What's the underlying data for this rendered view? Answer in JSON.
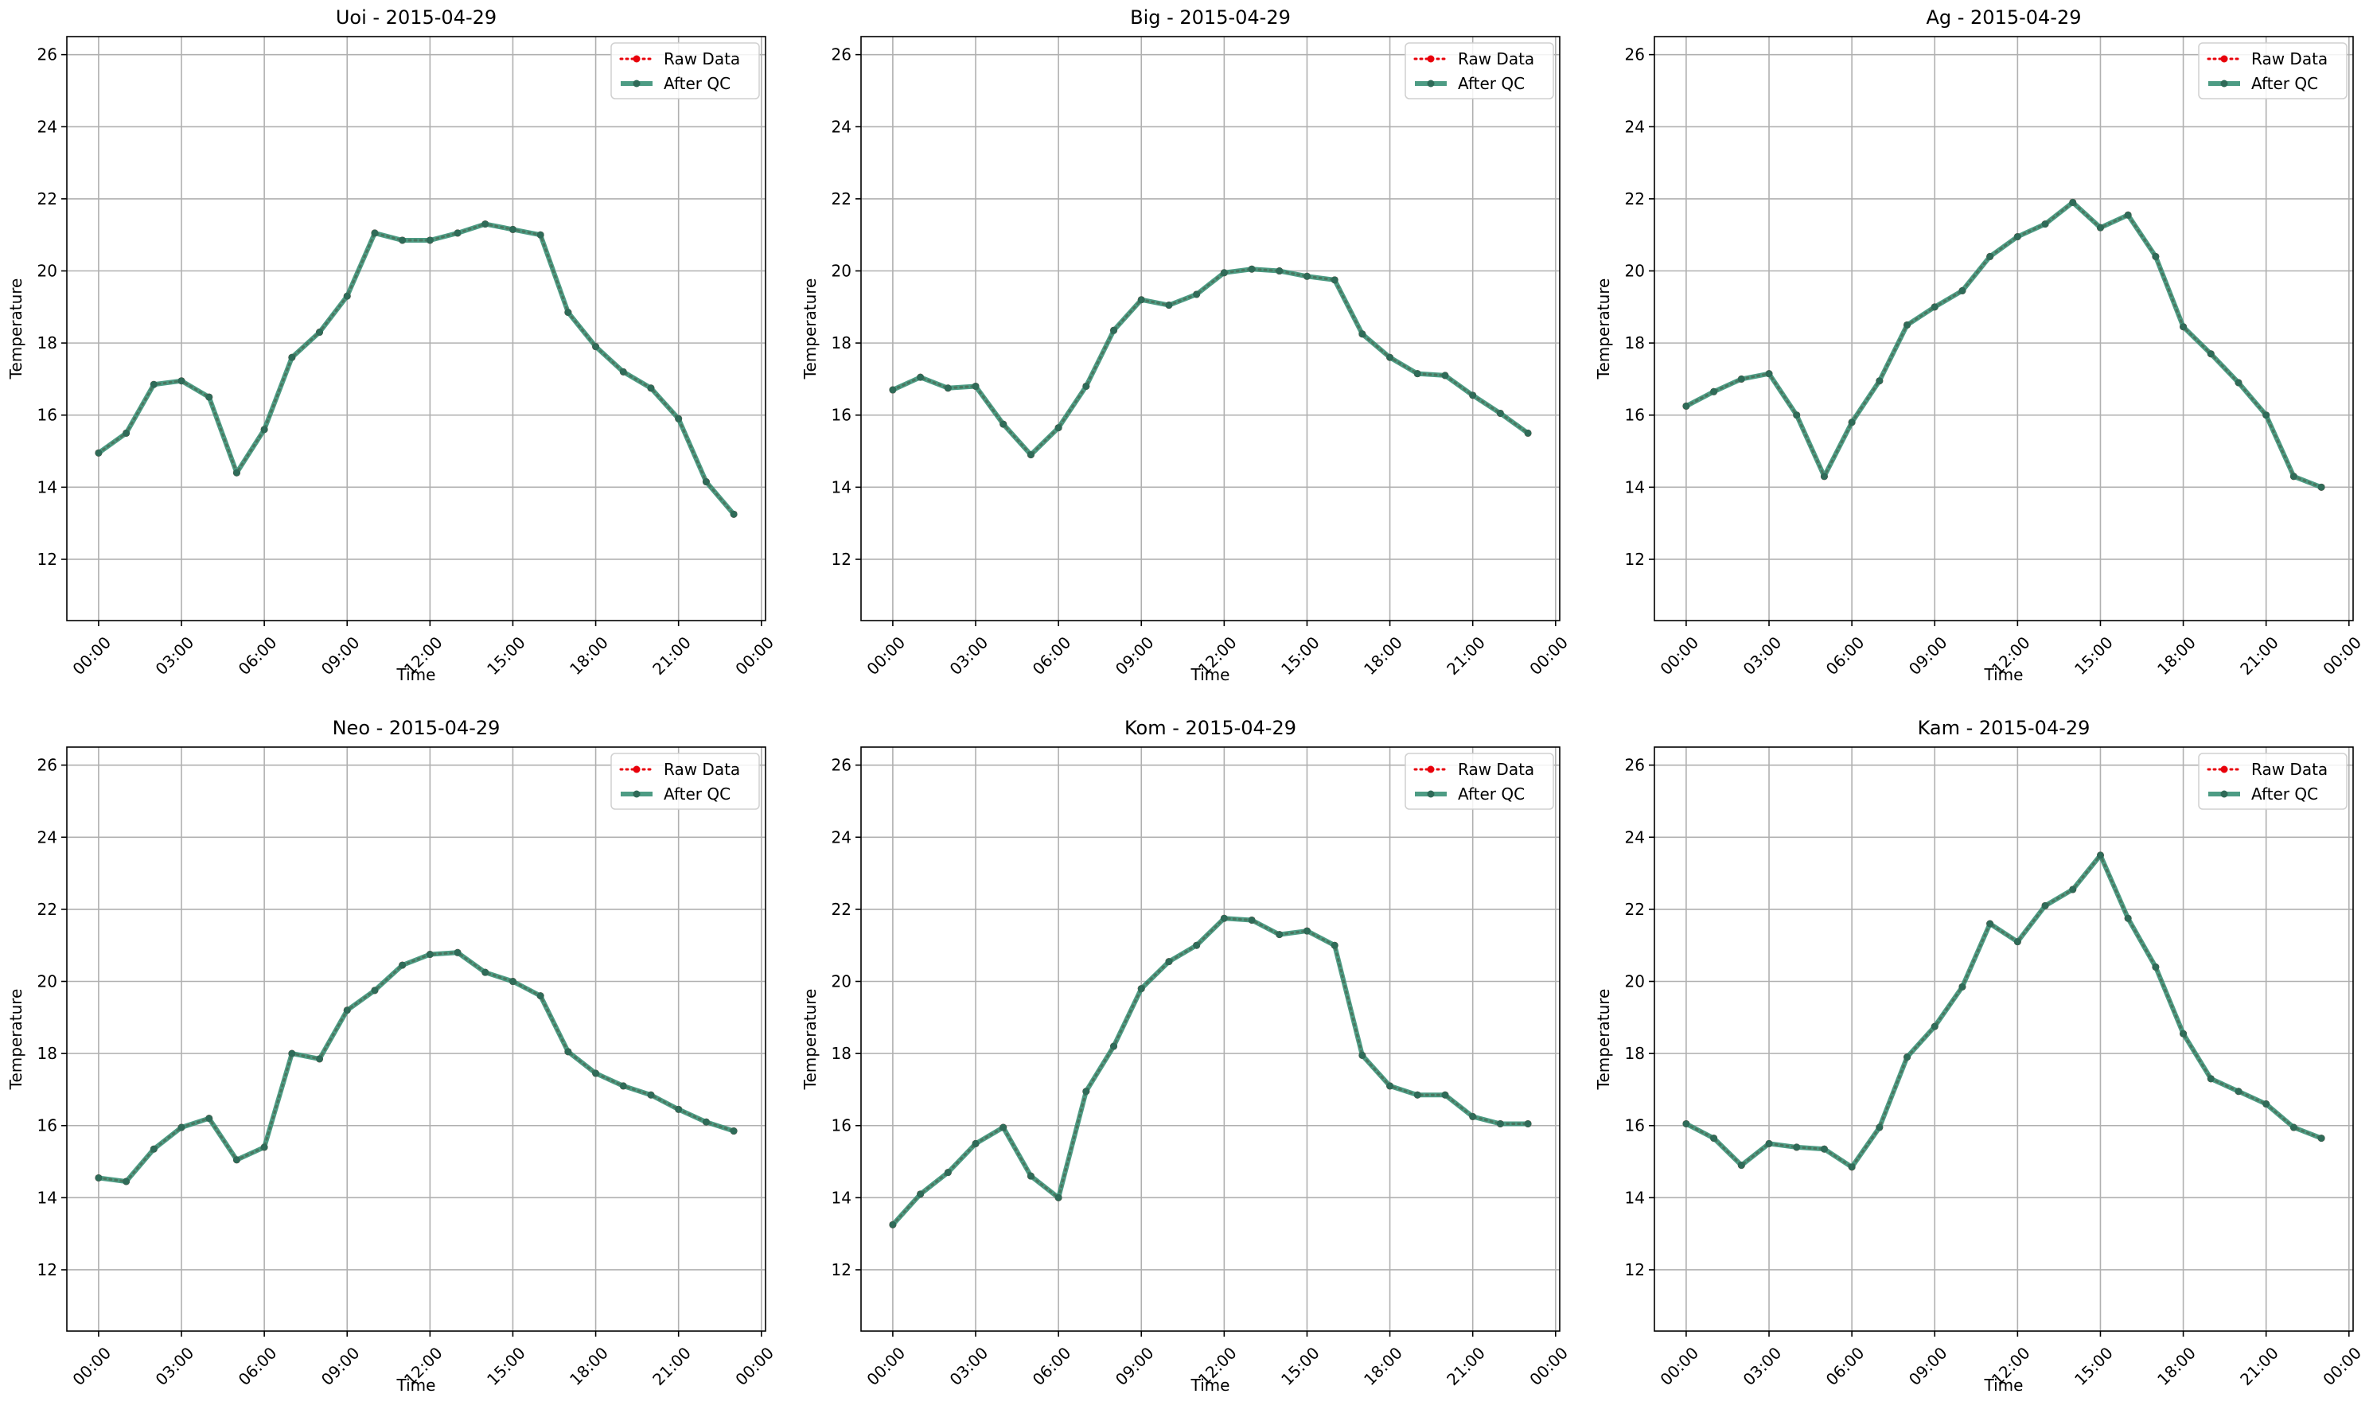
{
  "figure": {
    "legend_labels": [
      "Raw Data",
      "After QC"
    ],
    "series_colors": {
      "raw": "#e8000b",
      "qc": "#2e8b6f",
      "qc_marker": "#2f6b58"
    }
  },
  "chart_data": [
    {
      "type": "line",
      "title": "Uoi - 2015-04-29",
      "xlabel": "Time",
      "ylabel": "Temperature",
      "xlim": [
        -1.15,
        24.15
      ],
      "ylim": [
        10.3,
        26.5
      ],
      "x_ticks": [
        0,
        3,
        6,
        9,
        12,
        15,
        18,
        21,
        24
      ],
      "x_tick_labels": [
        "00:00",
        "03:00",
        "06:00",
        "09:00",
        "12:00",
        "15:00",
        "18:00",
        "21:00",
        "00:00"
      ],
      "y_ticks": [
        12,
        14,
        16,
        18,
        20,
        22,
        24,
        26
      ],
      "y_tick_labels": [
        "12",
        "14",
        "16",
        "18",
        "20",
        "22",
        "24",
        "26"
      ],
      "grid": true,
      "legend_position": "top-right",
      "x": [
        0,
        1,
        2,
        3,
        4,
        5,
        6,
        7,
        8,
        9,
        10,
        11,
        12,
        13,
        14,
        15,
        16,
        17,
        18,
        19,
        20,
        21,
        22,
        23
      ],
      "series": [
        {
          "name": "Raw Data",
          "values": [
            14.95,
            15.5,
            16.85,
            16.95,
            16.5,
            14.4,
            15.6,
            17.6,
            18.3,
            19.3,
            21.05,
            20.85,
            20.85,
            21.05,
            21.3,
            21.15,
            21.0,
            18.85,
            17.9,
            17.2,
            16.75,
            15.9,
            14.15,
            13.25
          ]
        },
        {
          "name": "After QC",
          "values": [
            14.95,
            15.5,
            16.85,
            16.95,
            16.5,
            14.4,
            15.6,
            17.6,
            18.3,
            19.3,
            21.05,
            20.85,
            20.85,
            21.05,
            21.3,
            21.15,
            21.0,
            18.85,
            17.9,
            17.2,
            16.75,
            15.9,
            14.15,
            13.25
          ]
        }
      ]
    },
    {
      "type": "line",
      "title": "Big - 2015-04-29",
      "xlabel": "Time",
      "ylabel": "Temperature",
      "xlim": [
        -1.15,
        24.15
      ],
      "ylim": [
        10.3,
        26.5
      ],
      "x_ticks": [
        0,
        3,
        6,
        9,
        12,
        15,
        18,
        21,
        24
      ],
      "x_tick_labels": [
        "00:00",
        "03:00",
        "06:00",
        "09:00",
        "12:00",
        "15:00",
        "18:00",
        "21:00",
        "00:00"
      ],
      "y_ticks": [
        12,
        14,
        16,
        18,
        20,
        22,
        24,
        26
      ],
      "y_tick_labels": [
        "12",
        "14",
        "16",
        "18",
        "20",
        "22",
        "24",
        "26"
      ],
      "grid": true,
      "legend_position": "top-right",
      "x": [
        0,
        1,
        2,
        3,
        4,
        5,
        6,
        7,
        8,
        9,
        10,
        11,
        12,
        13,
        14,
        15,
        16,
        17,
        18,
        19,
        20,
        21,
        22,
        23
      ],
      "series": [
        {
          "name": "Raw Data",
          "values": [
            16.7,
            17.05,
            16.75,
            16.8,
            15.75,
            14.9,
            15.65,
            16.8,
            18.35,
            19.2,
            19.05,
            19.35,
            19.95,
            20.05,
            20.0,
            19.85,
            19.75,
            18.25,
            17.6,
            17.15,
            17.1,
            16.55,
            16.05,
            15.5
          ]
        },
        {
          "name": "After QC",
          "values": [
            16.7,
            17.05,
            16.75,
            16.8,
            15.75,
            14.9,
            15.65,
            16.8,
            18.35,
            19.2,
            19.05,
            19.35,
            19.95,
            20.05,
            20.0,
            19.85,
            19.75,
            18.25,
            17.6,
            17.15,
            17.1,
            16.55,
            16.05,
            15.5
          ]
        }
      ]
    },
    {
      "type": "line",
      "title": "Ag - 2015-04-29",
      "xlabel": "Time",
      "ylabel": "Temperature",
      "xlim": [
        -1.15,
        24.15
      ],
      "ylim": [
        10.3,
        26.5
      ],
      "x_ticks": [
        0,
        3,
        6,
        9,
        12,
        15,
        18,
        21,
        24
      ],
      "x_tick_labels": [
        "00:00",
        "03:00",
        "06:00",
        "09:00",
        "12:00",
        "15:00",
        "18:00",
        "21:00",
        "00:00"
      ],
      "y_ticks": [
        12,
        14,
        16,
        18,
        20,
        22,
        24,
        26
      ],
      "y_tick_labels": [
        "12",
        "14",
        "16",
        "18",
        "20",
        "22",
        "24",
        "26"
      ],
      "grid": true,
      "legend_position": "top-right",
      "x": [
        0,
        1,
        2,
        3,
        4,
        5,
        6,
        7,
        8,
        9,
        10,
        11,
        12,
        13,
        14,
        15,
        16,
        17,
        18,
        19,
        20,
        21,
        22,
        23
      ],
      "series": [
        {
          "name": "Raw Data",
          "values": [
            16.25,
            16.65,
            17.0,
            17.15,
            16.0,
            14.3,
            15.8,
            16.95,
            18.5,
            19.0,
            19.45,
            20.4,
            20.95,
            21.3,
            21.9,
            21.2,
            21.55,
            20.4,
            18.45,
            17.7,
            16.9,
            16.0,
            14.3,
            14.0
          ]
        },
        {
          "name": "After QC",
          "values": [
            16.25,
            16.65,
            17.0,
            17.15,
            16.0,
            14.3,
            15.8,
            16.95,
            18.5,
            19.0,
            19.45,
            20.4,
            20.95,
            21.3,
            21.9,
            21.2,
            21.55,
            20.4,
            18.45,
            17.7,
            16.9,
            16.0,
            14.3,
            14.0
          ]
        }
      ]
    },
    {
      "type": "line",
      "title": "Neo - 2015-04-29",
      "xlabel": "Time",
      "ylabel": "Temperature",
      "xlim": [
        -1.15,
        24.15
      ],
      "ylim": [
        10.3,
        26.5
      ],
      "x_ticks": [
        0,
        3,
        6,
        9,
        12,
        15,
        18,
        21,
        24
      ],
      "x_tick_labels": [
        "00:00",
        "03:00",
        "06:00",
        "09:00",
        "12:00",
        "15:00",
        "18:00",
        "21:00",
        "00:00"
      ],
      "y_ticks": [
        12,
        14,
        16,
        18,
        20,
        22,
        24,
        26
      ],
      "y_tick_labels": [
        "12",
        "14",
        "16",
        "18",
        "20",
        "22",
        "24",
        "26"
      ],
      "grid": true,
      "legend_position": "top-right",
      "x": [
        0,
        1,
        2,
        3,
        4,
        5,
        6,
        7,
        8,
        9,
        10,
        11,
        12,
        13,
        14,
        15,
        16,
        17,
        18,
        19,
        20,
        21,
        22,
        23
      ],
      "series": [
        {
          "name": "Raw Data",
          "values": [
            14.55,
            14.45,
            15.35,
            15.95,
            16.2,
            15.05,
            15.4,
            18.0,
            17.85,
            19.2,
            19.75,
            20.45,
            20.75,
            20.8,
            20.25,
            20.0,
            19.6,
            18.05,
            17.45,
            17.1,
            16.85,
            16.45,
            16.1,
            15.85
          ]
        },
        {
          "name": "After QC",
          "values": [
            14.55,
            14.45,
            15.35,
            15.95,
            16.2,
            15.05,
            15.4,
            18.0,
            17.85,
            19.2,
            19.75,
            20.45,
            20.75,
            20.8,
            20.25,
            20.0,
            19.6,
            18.05,
            17.45,
            17.1,
            16.85,
            16.45,
            16.1,
            15.85
          ]
        }
      ]
    },
    {
      "type": "line",
      "title": "Kom - 2015-04-29",
      "xlabel": "Time",
      "ylabel": "Temperature",
      "xlim": [
        -1.15,
        24.15
      ],
      "ylim": [
        10.3,
        26.5
      ],
      "x_ticks": [
        0,
        3,
        6,
        9,
        12,
        15,
        18,
        21,
        24
      ],
      "x_tick_labels": [
        "00:00",
        "03:00",
        "06:00",
        "09:00",
        "12:00",
        "15:00",
        "18:00",
        "21:00",
        "00:00"
      ],
      "y_ticks": [
        12,
        14,
        16,
        18,
        20,
        22,
        24,
        26
      ],
      "y_tick_labels": [
        "12",
        "14",
        "16",
        "18",
        "20",
        "22",
        "24",
        "26"
      ],
      "grid": true,
      "legend_position": "top-right",
      "x": [
        0,
        1,
        2,
        3,
        4,
        5,
        6,
        7,
        8,
        9,
        10,
        11,
        12,
        13,
        14,
        15,
        16,
        17,
        18,
        19,
        20,
        21,
        22,
        23
      ],
      "series": [
        {
          "name": "Raw Data",
          "values": [
            13.25,
            14.1,
            14.7,
            15.5,
            15.95,
            14.6,
            14.0,
            16.95,
            18.2,
            19.8,
            20.55,
            21.0,
            21.75,
            21.7,
            21.3,
            21.4,
            21.0,
            17.95,
            17.1,
            16.85,
            16.85,
            16.25,
            16.05,
            16.05
          ]
        },
        {
          "name": "After QC",
          "values": [
            13.25,
            14.1,
            14.7,
            15.5,
            15.95,
            14.6,
            14.0,
            16.95,
            18.2,
            19.8,
            20.55,
            21.0,
            21.75,
            21.7,
            21.3,
            21.4,
            21.0,
            17.95,
            17.1,
            16.85,
            16.85,
            16.25,
            16.05,
            16.05
          ]
        }
      ]
    },
    {
      "type": "line",
      "title": "Kam - 2015-04-29",
      "xlabel": "Time",
      "ylabel": "Temperature",
      "xlim": [
        -1.15,
        24.15
      ],
      "ylim": [
        10.3,
        26.5
      ],
      "x_ticks": [
        0,
        3,
        6,
        9,
        12,
        15,
        18,
        21,
        24
      ],
      "x_tick_labels": [
        "00:00",
        "03:00",
        "06:00",
        "09:00",
        "12:00",
        "15:00",
        "18:00",
        "21:00",
        "00:00"
      ],
      "y_ticks": [
        12,
        14,
        16,
        18,
        20,
        22,
        24,
        26
      ],
      "y_tick_labels": [
        "12",
        "14",
        "16",
        "18",
        "20",
        "22",
        "24",
        "26"
      ],
      "grid": true,
      "legend_position": "top-right",
      "x": [
        0,
        1,
        2,
        3,
        4,
        5,
        6,
        7,
        8,
        9,
        10,
        11,
        12,
        13,
        14,
        15,
        16,
        17,
        18,
        19,
        20,
        21,
        22,
        23
      ],
      "series": [
        {
          "name": "Raw Data",
          "values": [
            16.05,
            15.65,
            14.9,
            15.5,
            15.4,
            15.35,
            14.85,
            15.95,
            17.9,
            18.75,
            19.85,
            21.6,
            21.1,
            22.1,
            22.55,
            23.5,
            21.75,
            20.4,
            18.55,
            17.3,
            16.95,
            16.6,
            15.95,
            15.65
          ]
        },
        {
          "name": "After QC",
          "values": [
            16.05,
            15.65,
            14.9,
            15.5,
            15.4,
            15.35,
            14.85,
            15.95,
            17.9,
            18.75,
            19.85,
            21.6,
            21.1,
            22.1,
            22.55,
            23.5,
            21.75,
            20.4,
            18.55,
            17.3,
            16.95,
            16.6,
            15.95,
            15.65
          ]
        }
      ]
    }
  ]
}
